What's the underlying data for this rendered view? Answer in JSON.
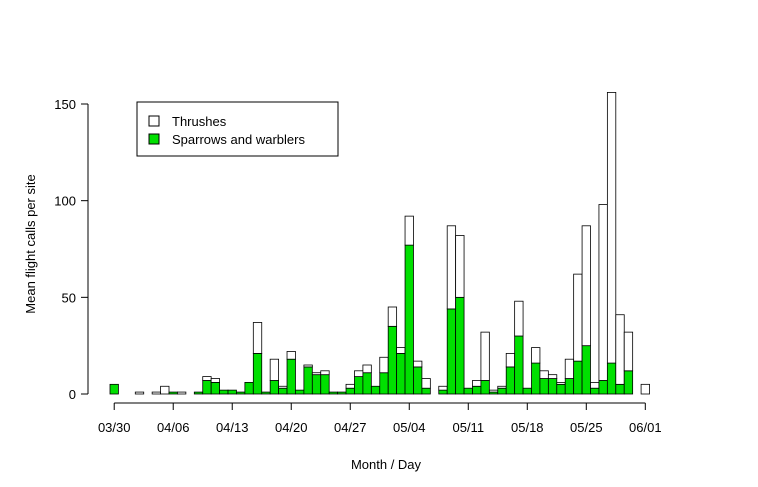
{
  "chart_data": {
    "type": "bar",
    "stacked": true,
    "xlabel": "Month / Day",
    "ylabel": "Mean flight calls per site",
    "ylim": [
      0,
      160
    ],
    "y_ticks": [
      0,
      50,
      100,
      150
    ],
    "x_ticks": [
      {
        "label": "03/30",
        "day": 0
      },
      {
        "label": "04/06",
        "day": 7
      },
      {
        "label": "04/13",
        "day": 14
      },
      {
        "label": "04/20",
        "day": 21
      },
      {
        "label": "04/27",
        "day": 28
      },
      {
        "label": "05/04",
        "day": 35
      },
      {
        "label": "05/11",
        "day": 42
      },
      {
        "label": "05/18",
        "day": 49
      },
      {
        "label": "05/25",
        "day": 56
      },
      {
        "label": "06/01",
        "day": 63
      }
    ],
    "legend_position": "top-left",
    "grid": false,
    "colors": {
      "thrushes": "#ffffff",
      "sparrows": "#00e000",
      "stroke": "#000000"
    },
    "series": [
      {
        "name": "Sparrows and warblers",
        "values": [
          5,
          0,
          0,
          0,
          0,
          0,
          0,
          1,
          0,
          0,
          1,
          7,
          6,
          2,
          2,
          1,
          6,
          21,
          1,
          7,
          3,
          18,
          2,
          14,
          10,
          10,
          1,
          1,
          3,
          9,
          11,
          4,
          11,
          35,
          21,
          77,
          14,
          3,
          0,
          2,
          44,
          50,
          3,
          4,
          7,
          1,
          3,
          14,
          30,
          3,
          16,
          8,
          8,
          5,
          8,
          17,
          25,
          3,
          7,
          16,
          5,
          12,
          0,
          0
        ]
      },
      {
        "name": "Thrushes",
        "values": [
          0,
          0,
          0,
          1,
          0,
          1,
          4,
          0,
          1,
          0,
          0,
          2,
          2,
          0,
          0,
          0,
          0,
          16,
          0,
          11,
          1,
          4,
          0,
          1,
          1,
          2,
          0,
          0,
          2,
          3,
          4,
          0,
          8,
          10,
          3,
          15,
          3,
          5,
          0,
          2,
          43,
          32,
          0,
          3,
          25,
          1,
          1,
          7,
          18,
          0,
          8,
          4,
          2,
          1,
          10,
          45,
          62,
          3,
          91,
          140,
          36,
          20,
          0,
          5
        ]
      }
    ]
  }
}
